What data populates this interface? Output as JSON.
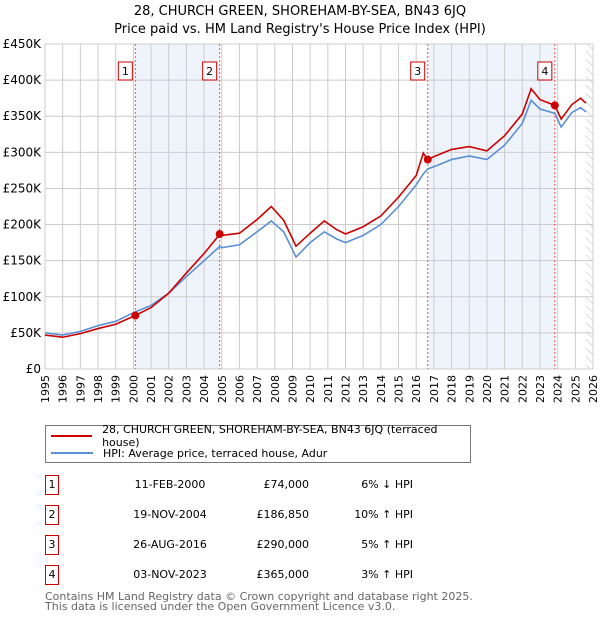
{
  "title": "28, CHURCH GREEN, SHOREHAM-BY-SEA, BN43 6JQ",
  "subtitle": "Price paid vs. HM Land Registry's House Price Index (HPI)",
  "colors": {
    "price": "#cc0000",
    "hpi": "#5b8fd4",
    "shade": "#eef3fc"
  },
  "chart_data": {
    "type": "line",
    "title": "28, CHURCH GREEN, SHOREHAM-BY-SEA, BN43 6JQ",
    "xlim": [
      1995,
      2026
    ],
    "ylim": [
      0,
      450000
    ],
    "x_ticks": [
      "1995",
      "1996",
      "1997",
      "1998",
      "1999",
      "2000",
      "2001",
      "2002",
      "2003",
      "2004",
      "2005",
      "2006",
      "2007",
      "2008",
      "2009",
      "2010",
      "2011",
      "2012",
      "2013",
      "2014",
      "2015",
      "2016",
      "2017",
      "2018",
      "2019",
      "2020",
      "2021",
      "2022",
      "2023",
      "2024",
      "2025",
      "2026"
    ],
    "y_ticks": [
      {
        "v": 0,
        "label": "£0"
      },
      {
        "v": 50000,
        "label": "£50K"
      },
      {
        "v": 100000,
        "label": "£100K"
      },
      {
        "v": 150000,
        "label": "£150K"
      },
      {
        "v": 200000,
        "label": "£200K"
      },
      {
        "v": 250000,
        "label": "£250K"
      },
      {
        "v": 300000,
        "label": "£300K"
      },
      {
        "v": 350000,
        "label": "£350K"
      },
      {
        "v": 400000,
        "label": "£400K"
      },
      {
        "v": 450000,
        "label": "£450K"
      }
    ],
    "grid": true,
    "x": [
      1995,
      1996,
      1997,
      1998,
      1999,
      2000.1,
      2001,
      2002,
      2003,
      2004,
      2004.9,
      2005,
      2006,
      2007,
      2007.8,
      2008.5,
      2009.2,
      2010,
      2010.8,
      2011.5,
      2012,
      2013,
      2014,
      2015,
      2016,
      2016.4,
      2016.65,
      2017,
      2018,
      2019,
      2020,
      2021,
      2022,
      2022.5,
      2023,
      2023.84,
      2024.2,
      2024.8,
      2025.3,
      2025.6
    ],
    "series": [
      {
        "name": "28, CHURCH GREEN, SHOREHAM-BY-SEA, BN43 6JQ (terraced house)",
        "color": "#cc0000",
        "values": [
          47000,
          44000,
          49000,
          56000,
          62000,
          74000,
          85000,
          105000,
          133000,
          160000,
          187000,
          185000,
          188000,
          207000,
          225000,
          206000,
          170000,
          188000,
          205000,
          193000,
          187000,
          197000,
          212000,
          238000,
          268000,
          299000,
          290000,
          294000,
          304000,
          308000,
          302000,
          323000,
          353000,
          388000,
          373000,
          365000,
          346000,
          366000,
          375000,
          368000
        ]
      },
      {
        "name": "HPI: Average price, terraced house, Adur",
        "color": "#5b8fd4",
        "values": [
          50000,
          47000,
          52000,
          60000,
          66000,
          79000,
          88000,
          105000,
          128000,
          150000,
          170000,
          168000,
          172000,
          190000,
          205000,
          190000,
          155000,
          175000,
          190000,
          180000,
          175000,
          185000,
          200000,
          225000,
          255000,
          270000,
          277000,
          280000,
          290000,
          295000,
          290000,
          310000,
          340000,
          372000,
          360000,
          354000,
          335000,
          355000,
          362000,
          356000
        ]
      }
    ],
    "forecast_from": 2025.6,
    "sales": [
      {
        "label": "1",
        "x": 2000.11,
        "price": 74000,
        "date": "11-FEB-2000",
        "price_text": "£74,000",
        "hpi_text": "6% ↓ HPI"
      },
      {
        "label": "2",
        "x": 2004.88,
        "price": 186850,
        "date": "19-NOV-2004",
        "price_text": "£186,850",
        "hpi_text": "10% ↑ HPI"
      },
      {
        "label": "3",
        "x": 2016.65,
        "price": 290000,
        "date": "26-AUG-2016",
        "price_text": "£290,000",
        "hpi_text": "5% ↑ HPI"
      },
      {
        "label": "4",
        "x": 2023.84,
        "price": 365000,
        "date": "03-NOV-2023",
        "price_text": "£365,000",
        "hpi_text": "3% ↑ HPI"
      }
    ]
  },
  "footer": [
    "Contains HM Land Registry data © Crown copyright and database right 2025.",
    "This data is licensed under the Open Government Licence v3.0."
  ]
}
